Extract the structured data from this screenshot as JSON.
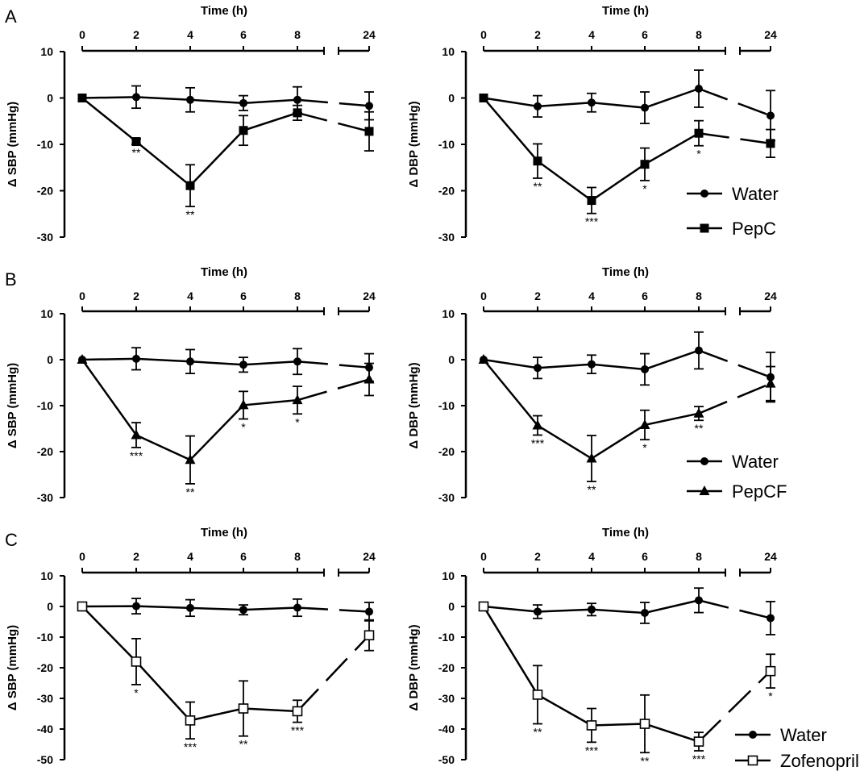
{
  "figure": {
    "panel_labels": [
      "A",
      "B",
      "C"
    ],
    "x_axis_title": "Time (h)",
    "x_ticks": [
      "0",
      "2",
      "4",
      "6",
      "8",
      "24"
    ],
    "legend": {
      "A": [
        "Water",
        "PepC"
      ],
      "B": [
        "Water",
        "PepCF"
      ],
      "C": [
        "Water",
        "Zofenopril"
      ]
    }
  },
  "chart_data": [
    {
      "id": "A-SBP",
      "panel": "A",
      "type": "line",
      "title": "",
      "xlabel": "Time (h)",
      "ylabel": "Δ SBP (mmHg)",
      "x": [
        0,
        2,
        4,
        6,
        8,
        24
      ],
      "ylim": [
        -30,
        10
      ],
      "yticks": [
        10,
        0,
        -10,
        -20,
        -30
      ],
      "grid": false,
      "series": [
        {
          "name": "Water",
          "marker": "circle",
          "values": [
            0,
            0.2,
            -0.4,
            -1.1,
            -0.4,
            -1.7
          ],
          "errors": [
            0,
            2.4,
            2.6,
            1.6,
            2.8,
            3.0
          ]
        },
        {
          "name": "PepC",
          "marker": "square",
          "values": [
            0,
            -9.4,
            -18.9,
            -7.0,
            -3.2,
            -7.2
          ],
          "errors": [
            0,
            0.6,
            4.5,
            3.2,
            1.6,
            4.2
          ],
          "significance": [
            "",
            "**",
            "**",
            "",
            "",
            ""
          ]
        }
      ]
    },
    {
      "id": "A-DBP",
      "panel": "A",
      "type": "line",
      "title": "",
      "xlabel": "Time (h)",
      "ylabel": "Δ DBP (mmHg)",
      "x": [
        0,
        2,
        4,
        6,
        8,
        24
      ],
      "ylim": [
        -30,
        10
      ],
      "yticks": [
        10,
        0,
        -10,
        -20,
        -30
      ],
      "grid": false,
      "legend_position": "bottom-right",
      "series": [
        {
          "name": "Water",
          "marker": "circle",
          "values": [
            0,
            -1.8,
            -1.0,
            -2.1,
            2.0,
            -3.8
          ],
          "errors": [
            0,
            2.3,
            2.0,
            3.4,
            4.0,
            5.4
          ]
        },
        {
          "name": "PepC",
          "marker": "square",
          "values": [
            0,
            -13.6,
            -22.1,
            -14.3,
            -7.6,
            -9.8
          ],
          "errors": [
            0,
            3.7,
            2.8,
            3.5,
            2.7,
            3.0
          ],
          "significance": [
            "",
            "**",
            "***",
            "*",
            "*",
            ""
          ]
        }
      ]
    },
    {
      "id": "B-SBP",
      "panel": "B",
      "type": "line",
      "title": "",
      "xlabel": "Time (h)",
      "ylabel": "Δ SBP (mmHg)",
      "x": [
        0,
        2,
        4,
        6,
        8,
        24
      ],
      "ylim": [
        -30,
        10
      ],
      "yticks": [
        10,
        0,
        -10,
        -20,
        -30
      ],
      "grid": false,
      "series": [
        {
          "name": "Water",
          "marker": "circle",
          "values": [
            0,
            0.2,
            -0.4,
            -1.1,
            -0.4,
            -1.7
          ],
          "errors": [
            0,
            2.4,
            2.6,
            1.6,
            2.8,
            3.0
          ]
        },
        {
          "name": "PepCF",
          "marker": "triangle",
          "values": [
            0,
            -16.4,
            -21.8,
            -9.9,
            -8.8,
            -4.3
          ],
          "errors": [
            0,
            2.7,
            5.2,
            3.0,
            3.0,
            3.5
          ],
          "significance": [
            "",
            "***",
            "**",
            "*",
            "*",
            ""
          ]
        }
      ]
    },
    {
      "id": "B-DBP",
      "panel": "B",
      "type": "line",
      "title": "",
      "xlabel": "Time (h)",
      "ylabel": "Δ DBP (mmHg)",
      "x": [
        0,
        2,
        4,
        6,
        8,
        24
      ],
      "ylim": [
        -30,
        10
      ],
      "yticks": [
        10,
        0,
        -10,
        -20,
        -30
      ],
      "grid": false,
      "legend_position": "bottom-right",
      "series": [
        {
          "name": "Water",
          "marker": "circle",
          "values": [
            0,
            -1.8,
            -1.0,
            -2.1,
            2.0,
            -3.8
          ],
          "errors": [
            0,
            2.3,
            2.0,
            3.4,
            4.0,
            5.4
          ]
        },
        {
          "name": "PepCF",
          "marker": "triangle",
          "values": [
            0,
            -14.3,
            -21.5,
            -14.2,
            -11.7,
            -5.2
          ],
          "errors": [
            0,
            2.1,
            5.0,
            3.2,
            1.5,
            3.7
          ],
          "significance": [
            "",
            "***",
            "**",
            "*",
            "**",
            ""
          ]
        }
      ]
    },
    {
      "id": "C-SBP",
      "panel": "C",
      "type": "line",
      "title": "",
      "xlabel": "Time (h)",
      "ylabel": "Δ SBP (mmHg)",
      "x": [
        0,
        2,
        4,
        6,
        8,
        24
      ],
      "ylim": [
        -50,
        10
      ],
      "yticks": [
        10,
        0,
        -10,
        -20,
        -30,
        -40,
        -50
      ],
      "grid": false,
      "series": [
        {
          "name": "Water",
          "marker": "circle",
          "values": [
            0,
            0.1,
            -0.5,
            -1.1,
            -0.4,
            -1.7
          ],
          "errors": [
            0,
            2.5,
            2.7,
            1.6,
            2.8,
            3.0
          ]
        },
        {
          "name": "Zofenopril",
          "marker": "open-square",
          "values": [
            0,
            -18.0,
            -37.2,
            -33.3,
            -34.2,
            -9.4
          ],
          "errors": [
            0,
            7.5,
            6.0,
            9.0,
            3.6,
            5.0
          ],
          "significance": [
            "",
            "*",
            "***",
            "**",
            "***",
            ""
          ]
        }
      ]
    },
    {
      "id": "C-DBP",
      "panel": "C",
      "type": "line",
      "title": "",
      "xlabel": "Time (h)",
      "ylabel": "Δ DBP (mmHg)",
      "x": [
        0,
        2,
        4,
        6,
        8,
        24
      ],
      "ylim": [
        -50,
        10
      ],
      "yticks": [
        10,
        0,
        -10,
        -20,
        -30,
        -40,
        -50
      ],
      "grid": false,
      "legend_position": "bottom-right",
      "series": [
        {
          "name": "Water",
          "marker": "circle",
          "values": [
            0,
            -1.7,
            -1.0,
            -2.1,
            2.0,
            -3.8
          ],
          "errors": [
            0,
            2.2,
            2.0,
            3.4,
            4.0,
            5.4
          ]
        },
        {
          "name": "Zofenopril",
          "marker": "open-square",
          "values": [
            0,
            -28.8,
            -38.8,
            -38.3,
            -44.1,
            -21.1
          ],
          "errors": [
            0,
            9.5,
            5.5,
            9.4,
            3.0,
            5.5
          ],
          "significance": [
            "",
            "**",
            "***",
            "**",
            "***",
            "*"
          ]
        }
      ]
    }
  ]
}
